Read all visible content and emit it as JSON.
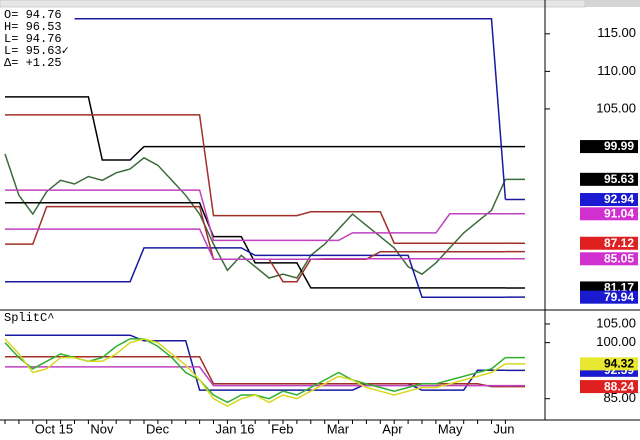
{
  "chart_data": [
    {
      "type": "line",
      "annotations": [
        "O= 94.76",
        "H= 96.53",
        "L= 94.76",
        "L= 95.63✓",
        "Δ= +1.25"
      ],
      "categories": [
        null,
        null,
        "Oct 15",
        null,
        null,
        null,
        "Nov",
        null,
        null,
        null,
        "Dec",
        null,
        null,
        null,
        null,
        "Jan 16",
        null,
        null,
        null,
        "Feb",
        null,
        null,
        null,
        "Mar",
        null,
        null,
        null,
        "Apr",
        null,
        null,
        null,
        "May",
        null,
        null,
        null,
        "Jun",
        null
      ],
      "ylim": [
        78.5,
        119.5
      ],
      "yticks": [
        {
          "value": 105,
          "label": "105.00"
        },
        {
          "value": 110,
          "label": "110.00"
        },
        {
          "value": 115,
          "label": "115.00"
        }
      ],
      "series": [
        {
          "color": "#3a6b3a",
          "label_last": true,
          "tag_color": "#000000",
          "values": [
            99.0,
            93.5,
            91.0,
            94.0,
            95.5,
            95.0,
            96.0,
            95.5,
            96.5,
            97.0,
            98.5,
            97.5,
            95.5,
            93.5,
            91.0,
            87.0,
            83.5,
            85.5,
            84.0,
            82.5,
            83.0,
            82.5,
            85.5,
            87.0,
            89.0,
            91.0,
            89.5,
            88.0,
            86.5,
            84.0,
            83.0,
            84.5,
            86.5,
            88.5,
            90.0,
            91.5,
            95.63
          ]
        },
        {
          "color": "#000000",
          "label_last": true,
          "tag_color": "#000000",
          "values": [
            106.6,
            106.6,
            106.6,
            106.6,
            106.6,
            106.6,
            106.6,
            98.2,
            98.2,
            98.2,
            99.99,
            99.99,
            99.99,
            99.99,
            99.99,
            99.99,
            99.99,
            99.99,
            99.99,
            99.99,
            99.99,
            99.99,
            99.99,
            99.99,
            99.99,
            99.99,
            99.99,
            99.99,
            99.99,
            99.99,
            99.99,
            99.99,
            99.99,
            99.99,
            99.99,
            99.99,
            99.99
          ]
        },
        {
          "color": "#000000",
          "label_last": true,
          "tag_color": "#000000",
          "values": [
            92.5,
            92.5,
            92.5,
            92.5,
            92.5,
            92.5,
            92.5,
            92.5,
            92.5,
            92.5,
            92.5,
            92.5,
            92.5,
            92.5,
            92.5,
            88.0,
            88.0,
            88.0,
            84.5,
            84.5,
            84.5,
            84.5,
            81.17,
            81.17,
            81.17,
            81.17,
            81.17,
            81.17,
            81.17,
            81.17,
            81.17,
            81.17,
            81.17,
            81.17,
            81.17,
            81.17,
            81.17
          ]
        },
        {
          "color": "#1a1aa0",
          "label_last": true,
          "tag_color": "#1a1ad0",
          "values": [
            null,
            null,
            null,
            null,
            null,
            117.0,
            117.0,
            117.0,
            117.0,
            117.0,
            117.0,
            117.0,
            117.0,
            117.0,
            117.0,
            117.0,
            117.0,
            117.0,
            117.0,
            117.0,
            117.0,
            117.0,
            117.0,
            117.0,
            117.0,
            117.0,
            117.0,
            117.0,
            117.0,
            117.0,
            117.0,
            117.0,
            117.0,
            117.0,
            117.0,
            117.0,
            92.94
          ]
        },
        {
          "color": "#1a1aa0",
          "label_last": true,
          "tag_color": "#1a1ad0",
          "values": [
            82.0,
            82.0,
            82.0,
            82.0,
            82.0,
            82.0,
            82.0,
            82.0,
            82.0,
            82.0,
            86.5,
            86.5,
            86.5,
            86.5,
            86.5,
            86.5,
            86.5,
            86.5,
            85.5,
            85.5,
            85.5,
            85.5,
            85.5,
            85.5,
            85.5,
            85.5,
            85.5,
            85.5,
            85.5,
            85.5,
            79.94,
            79.94,
            79.94,
            79.94,
            79.94,
            79.94,
            79.94
          ]
        },
        {
          "color": "#a03028",
          "label_last": true,
          "tag_color": "#e02020",
          "values": [
            104.2,
            104.2,
            104.2,
            104.2,
            104.2,
            104.2,
            104.2,
            104.2,
            104.2,
            104.2,
            104.2,
            104.2,
            104.2,
            104.2,
            104.2,
            90.8,
            90.8,
            90.8,
            90.8,
            90.8,
            90.8,
            90.8,
            91.3,
            91.3,
            91.3,
            91.3,
            91.3,
            91.3,
            87.12,
            87.12,
            87.12,
            87.12,
            87.12,
            87.12,
            87.12,
            87.12,
            87.12
          ]
        },
        {
          "color": "#a03028",
          "label_last": false,
          "values": [
            87.0,
            87.0,
            87.0,
            92.0,
            92.0,
            92.0,
            92.0,
            92.0,
            92.0,
            92.0,
            92.0,
            92.0,
            92.0,
            92.0,
            92.0,
            85.0,
            85.0,
            85.0,
            85.0,
            85.0,
            82.0,
            82.0,
            85.0,
            85.0,
            85.0,
            85.0,
            85.0,
            86.0,
            86.0,
            86.0,
            86.0,
            86.0,
            86.0,
            86.0,
            86.0,
            86.0,
            86.0
          ]
        },
        {
          "color": "#c040c0",
          "label_last": true,
          "tag_color": "#d030d0",
          "values": [
            94.2,
            94.2,
            94.2,
            94.2,
            94.2,
            94.2,
            94.2,
            94.2,
            94.2,
            94.2,
            94.2,
            94.2,
            94.2,
            94.2,
            94.2,
            87.5,
            87.5,
            87.5,
            87.5,
            87.5,
            87.5,
            87.5,
            87.5,
            87.5,
            87.5,
            88.5,
            88.5,
            88.5,
            88.5,
            88.5,
            88.5,
            88.5,
            91.04,
            91.04,
            91.04,
            91.04,
            91.04
          ]
        },
        {
          "color": "#c040c0",
          "label_last": true,
          "tag_color": "#d030d0",
          "values": [
            89.0,
            89.0,
            89.0,
            89.0,
            89.0,
            89.0,
            89.0,
            89.0,
            89.0,
            89.0,
            89.0,
            89.0,
            89.0,
            89.0,
            89.0,
            85.0,
            85.0,
            85.0,
            85.0,
            85.0,
            85.0,
            85.0,
            85.0,
            85.05,
            85.05,
            85.05,
            85.05,
            85.05,
            85.05,
            85.05,
            85.05,
            85.05,
            85.05,
            85.05,
            85.05,
            85.05,
            85.05
          ]
        }
      ]
    },
    {
      "type": "line",
      "title": "SplitC^",
      "ylim": [
        79.3,
        108.2
      ],
      "yticks": [
        {
          "value": 85,
          "label": "85.00"
        },
        {
          "value": 100,
          "label": "100.00"
        },
        {
          "value": 105,
          "label": "105.00"
        }
      ],
      "series": [
        {
          "color": "#1a1aa0",
          "label_last": true,
          "tag_color": "#1a1ad0",
          "values": [
            102.0,
            102.0,
            102.0,
            102.0,
            102.0,
            102.0,
            102.0,
            102.0,
            102.0,
            102.0,
            100.5,
            100.5,
            100.5,
            100.5,
            87.3,
            87.3,
            87.3,
            87.3,
            87.3,
            87.3,
            87.3,
            87.3,
            87.3,
            87.3,
            87.3,
            87.3,
            89.0,
            89.0,
            89.0,
            89.0,
            87.3,
            87.3,
            87.3,
            87.3,
            92.59,
            92.59,
            92.59
          ]
        },
        {
          "color": "#a03028",
          "label_last": true,
          "tag_color": "#e02020",
          "values": [
            96.2,
            96.2,
            96.2,
            96.2,
            96.2,
            96.2,
            96.2,
            96.2,
            96.2,
            96.2,
            96.2,
            96.2,
            96.2,
            96.2,
            96.2,
            89.0,
            89.0,
            89.0,
            89.0,
            89.0,
            89.0,
            89.0,
            89.0,
            89.0,
            89.0,
            89.0,
            89.0,
            89.0,
            89.0,
            89.0,
            89.0,
            89.0,
            89.0,
            89.0,
            89.0,
            88.24,
            88.24
          ]
        },
        {
          "color": "#c040c0",
          "label_last": false,
          "values": [
            93.5,
            93.5,
            93.5,
            93.5,
            93.5,
            93.5,
            93.5,
            93.5,
            93.5,
            93.5,
            93.5,
            93.5,
            93.5,
            93.5,
            93.5,
            88.5,
            88.5,
            88.5,
            88.5,
            88.5,
            88.5,
            88.5,
            88.5,
            88.5,
            88.5,
            88.5,
            88.5,
            88.5,
            88.5,
            88.5,
            88.5,
            88.5,
            88.5,
            88.5,
            88.5,
            88.5,
            88.5
          ]
        },
        {
          "color": "#30b030",
          "label_last": false,
          "values": [
            100,
            96,
            93,
            95,
            97,
            96,
            95,
            96,
            99,
            101,
            101,
            99,
            96,
            92,
            90,
            86,
            84,
            86,
            86,
            85,
            87,
            86,
            88,
            90,
            92,
            90,
            89,
            88,
            87,
            88,
            89,
            89,
            90,
            91,
            92,
            93,
            96
          ]
        },
        {
          "color": "#d8d820",
          "label_last": true,
          "tag_color": "#e8e830",
          "tag_text": "#000000",
          "values": [
            101,
            97,
            92,
            93,
            96,
            96,
            95,
            95,
            97,
            100,
            101,
            100,
            97,
            94,
            90,
            85,
            83,
            85,
            86,
            84,
            86,
            85,
            87,
            89,
            91,
            90,
            88,
            87,
            86,
            87,
            88,
            88,
            89,
            90,
            91,
            92,
            94.32
          ]
        }
      ]
    }
  ]
}
